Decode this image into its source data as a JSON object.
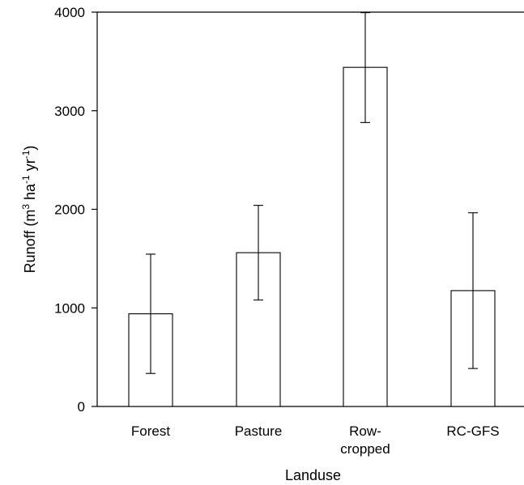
{
  "chart_data": {
    "type": "bar",
    "categories": [
      [
        "Forest"
      ],
      [
        "Pasture"
      ],
      [
        "Row-",
        "cropped"
      ],
      [
        "RC-GFS"
      ]
    ],
    "values": [
      940,
      1560,
      3440,
      1175
    ],
    "error_low": [
      335,
      1080,
      2880,
      385
    ],
    "error_high": [
      1545,
      2040,
      3995,
      1965
    ],
    "xlabel": "Landuse",
    "ylabel": {
      "prefix": "Runoff (m",
      "sup1": "3",
      "mid1": " ha",
      "sup2": "-1",
      "mid2": " yr",
      "sup3": "-1",
      "suffix": ")"
    },
    "yticks": [
      "0",
      "1000",
      "2000",
      "3000",
      "4000"
    ],
    "ylim": [
      0,
      4000
    ],
    "grid": false,
    "legend": "none",
    "colors": {
      "bar_fill": "#ffffff",
      "stroke": "#000000"
    }
  }
}
